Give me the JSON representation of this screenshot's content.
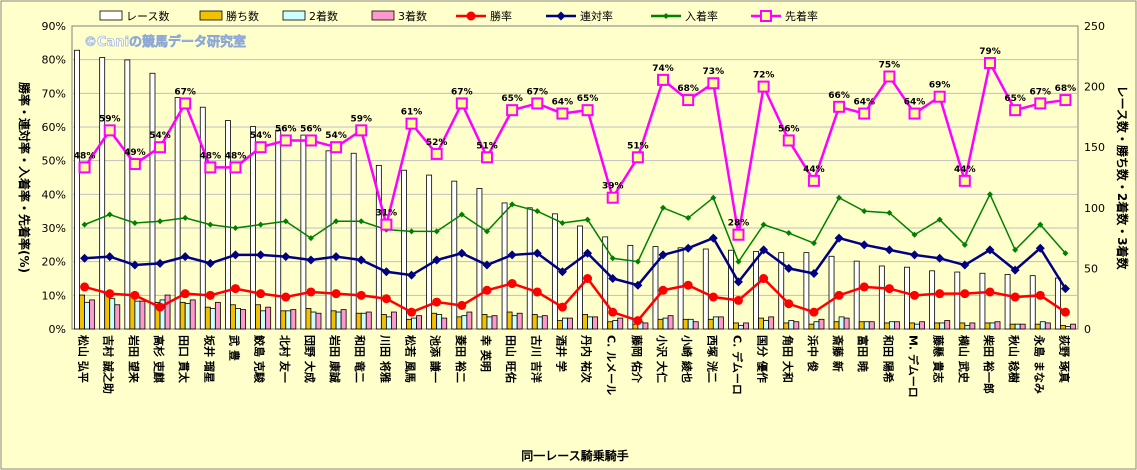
{
  "chart_data": {
    "type": "bar+line",
    "xlabel": "同一レース騎乗騎手",
    "ylabel_left": "勝率・連対率・入着率・先着率(%)",
    "ylabel_right": "レース数・勝ち数・2着数・3着数",
    "watermark": "©Caniの競馬データ研究室",
    "left_axis": {
      "min": 0,
      "max": 90,
      "ticks": [
        "0%",
        "10%",
        "20%",
        "30%",
        "40%",
        "50%",
        "60%",
        "70%",
        "80%",
        "90%"
      ]
    },
    "right_axis": {
      "min": 0,
      "max": 250,
      "ticks": [
        "0",
        "50",
        "100",
        "150",
        "200",
        "250"
      ]
    },
    "categories": [
      "松山 弘平",
      "吉村 誠之助",
      "岩田 望来",
      "高杉 吏麒",
      "田口 貫太",
      "坂井 瑠星",
      "武 豊",
      "鮫島 克駿",
      "北村 友一",
      "団野 大成",
      "岩田 康誠",
      "和田 竜二",
      "川田 将雅",
      "松若 風馬",
      "池添 謙一",
      "菱田 裕二",
      "幸 英明",
      "田山 旺佑",
      "古川 吉洋",
      "酒井 学",
      "丹内 祐次",
      "C. ルメール",
      "藤岡 佑介",
      "小沢 大仁",
      "小崎 綾也",
      "西塚 洸二",
      "C. デムーロ",
      "国分 優作",
      "角田 大和",
      "浜中 俊",
      "斎藤 新",
      "富田 暁",
      "和田 陽希",
      "M. デムーロ",
      "藤懸 貴志",
      "横山 武史",
      "柴田 裕一郎",
      "秋山 稔樹",
      "永島 まなみ",
      "荻野 琢真"
    ],
    "legend": [
      "レース数",
      "勝ち数",
      "2着数",
      "3着数",
      "勝率",
      "連対率",
      "入着率",
      "先着率"
    ],
    "colors": {
      "races": "#ffffff",
      "wins": "#f2c200",
      "second": "#ccffff",
      "third": "#ff99cc",
      "win_rate": "#ff0000",
      "place_rate": "#000080",
      "show_rate": "#008000",
      "ahead_rate": "#ff00ff"
    },
    "series": [
      {
        "name": "レース数",
        "axis": "right",
        "values": [
          230,
          224,
          222,
          211,
          191,
          183,
          172,
          167,
          164,
          160,
          147,
          145,
          135,
          131,
          127,
          122,
          116,
          104,
          100,
          95,
          85,
          76,
          69,
          68,
          67,
          66,
          65,
          64,
          63,
          63,
          60,
          56,
          52,
          51,
          48,
          47,
          46,
          45,
          44,
          42
        ]
      },
      {
        "name": "勝ち数",
        "axis": "right",
        "values": [
          28,
          30,
          28,
          22,
          22,
          18,
          20,
          20,
          15,
          17,
          15,
          13,
          12,
          8,
          13,
          10,
          12,
          14,
          12,
          7,
          12,
          6,
          4,
          8,
          8,
          8,
          5,
          9,
          5,
          4,
          6,
          6,
          5,
          5,
          5,
          5,
          5,
          4,
          4,
          3
        ]
      },
      {
        "name": "2着数",
        "axis": "right",
        "values": [
          22,
          25,
          23,
          24,
          21,
          17,
          17,
          15,
          15,
          14,
          14,
          13,
          10,
          9,
          12,
          11,
          10,
          11,
          10,
          9,
          10,
          7,
          6,
          9,
          8,
          10,
          3,
          7,
          7,
          6,
          10,
          6,
          6,
          4,
          5,
          3,
          5,
          4,
          6,
          2
        ]
      },
      {
        "name": "3着数",
        "axis": "right",
        "values": [
          24,
          20,
          23,
          28,
          24,
          22,
          16,
          18,
          16,
          13,
          16,
          14,
          14,
          11,
          9,
          14,
          11,
          13,
          11,
          9,
          10,
          9,
          5,
          11,
          6,
          10,
          5,
          10,
          6,
          8,
          9,
          6,
          6,
          6,
          7,
          5,
          6,
          4,
          5,
          4
        ]
      },
      {
        "name": "勝率",
        "axis": "left",
        "values": [
          12.5,
          10.5,
          10,
          6.5,
          10.5,
          10,
          12,
          10.5,
          9.5,
          11,
          10.5,
          10,
          9,
          5,
          8,
          7,
          11.5,
          13.5,
          11,
          6.5,
          15,
          5,
          2.5,
          11.5,
          13,
          9.5,
          8.5,
          15,
          7.5,
          5,
          10,
          12.5,
          12,
          10,
          10.5,
          10.5,
          11,
          9.5,
          10,
          5
        ]
      },
      {
        "name": "連対率",
        "axis": "left",
        "values": [
          21,
          21.5,
          19,
          19.5,
          21.5,
          19.5,
          22,
          22,
          21.5,
          20.5,
          21.5,
          20.5,
          17,
          16,
          20.5,
          22.5,
          19,
          22,
          22.5,
          17,
          22.5,
          15,
          13,
          22,
          24,
          27,
          14,
          23.5,
          18,
          16.5,
          27,
          25,
          23.5,
          22,
          21,
          19,
          23.5,
          17.5,
          24,
          12
        ]
      },
      {
        "name": "入着率",
        "axis": "left",
        "values": [
          31,
          34,
          31.5,
          32,
          33,
          31,
          30,
          31,
          32,
          27,
          32,
          32,
          29.5,
          29,
          29,
          34,
          29,
          37,
          35,
          31.5,
          32.5,
          21,
          20,
          36,
          33,
          39,
          20,
          31,
          28.5,
          25.5,
          39,
          35,
          34.5,
          28,
          32.5,
          25,
          40,
          23.5,
          31,
          22.5
        ]
      },
      {
        "name": "先着率",
        "axis": "left",
        "values": [
          48,
          59,
          49,
          54,
          67,
          48,
          48,
          54,
          56,
          56,
          54,
          59,
          31,
          61,
          52,
          67,
          51,
          65,
          67,
          64,
          65,
          39,
          51,
          74,
          68,
          73,
          28,
          72,
          56,
          44,
          66,
          64,
          75,
          64,
          69,
          44,
          79,
          65,
          67,
          68
        ]
      }
    ],
    "data_labels": [
      "48%",
      "59%",
      "49%",
      "54%",
      "67%",
      "48%",
      "48%",
      "54%",
      "56%",
      "56%",
      "54%",
      "59%",
      "31%",
      "61%",
      "52%",
      "67%",
      "51%",
      "65%",
      "67%",
      "64%",
      "65%",
      "39%",
      "51%",
      "74%",
      "68%",
      "73%",
      "28%",
      "72%",
      "56%",
      "44%",
      "66%",
      "64%",
      "75%",
      "64%",
      "69%",
      "44%",
      "79%",
      "65%",
      "67%",
      "68%"
    ]
  }
}
